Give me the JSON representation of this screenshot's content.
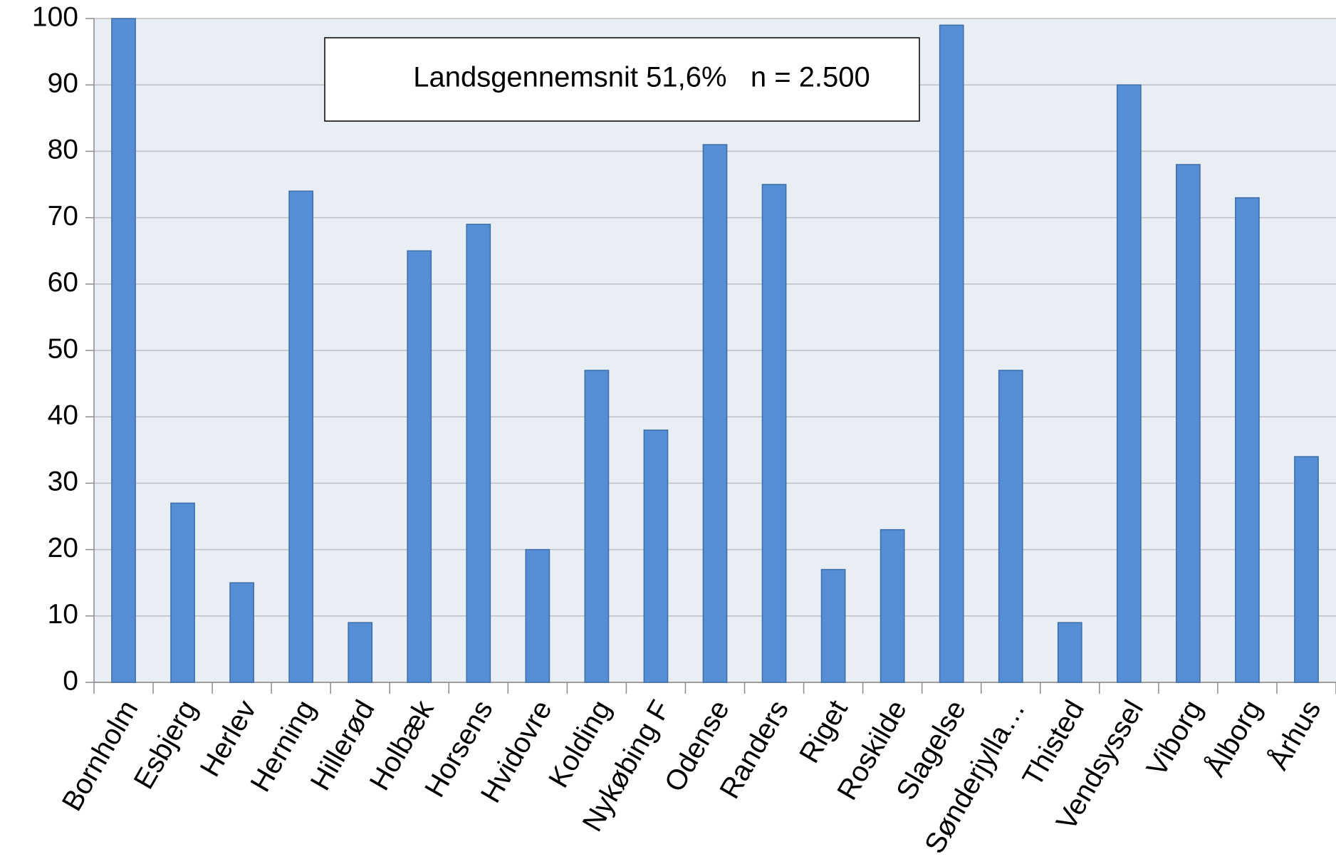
{
  "chart_data": {
    "type": "bar",
    "annotation": "Landsgennemsnit 51,6%   n = 2.500",
    "categories": [
      "Bornholm",
      "Esbjerg",
      "Herlev",
      "Herning",
      "Hillerød",
      "Holbæk",
      "Horsens",
      "Hvidovre",
      "Kolding",
      "Nykøbing F",
      "Odense",
      "Randers",
      "Riget",
      "Roskilde",
      "Slagelse",
      "Sønderjylla…",
      "Thisted",
      "Vendsyssel",
      "Viborg",
      "Ålborg",
      "Århus"
    ],
    "values": [
      100,
      27,
      15,
      74,
      9,
      65,
      69,
      20,
      47,
      38,
      81,
      75,
      17,
      23,
      99,
      47,
      9,
      90,
      78,
      73,
      34
    ],
    "color": "#558ed5",
    "ylim": [
      0,
      100
    ],
    "yticks": [
      0,
      10,
      20,
      30,
      40,
      50,
      60,
      70,
      80,
      90,
      100
    ],
    "grid": true
  }
}
